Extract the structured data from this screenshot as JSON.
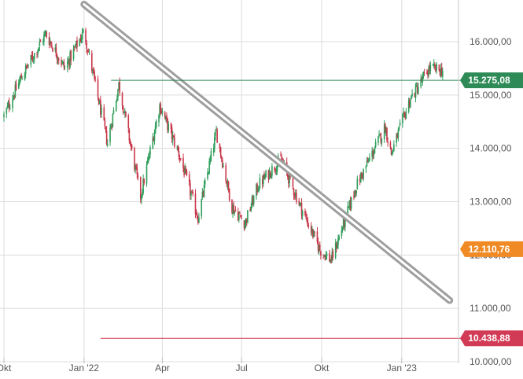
{
  "chart_data": {
    "type": "candlestick",
    "title": "",
    "xlabel": "",
    "ylabel": "",
    "ylim": [
      9900,
      16800
    ],
    "y_ticks": [
      "10.000,00",
      "11.000,00",
      "12.000,00",
      "13.000,00",
      "14.000,00",
      "15.000,00",
      "16.000,00"
    ],
    "y_tick_values": [
      10000,
      11000,
      12000,
      13000,
      14000,
      15000,
      16000
    ],
    "x_ticks": [
      "Okt",
      "Jan '22",
      "Apr",
      "Jul",
      "Okt",
      "Jan '23"
    ],
    "x_tick_dates": [
      "2021-10-01",
      "2022-01-01",
      "2022-04-01",
      "2022-07-01",
      "2022-10-01",
      "2023-01-01"
    ],
    "x_range": [
      "2021-10-01",
      "2023-02-28"
    ],
    "grid": true,
    "colors": {
      "up": "#2e9e5b",
      "down": "#c9374a",
      "grid": "#dcdcdc",
      "trendline": "#9e9e9e",
      "resistance": "#2e8b57",
      "support": "#d23b55",
      "current": "#f08a24"
    },
    "trendline": {
      "start": {
        "date": "2022-01-01",
        "value": 16700
      },
      "end": {
        "date": "2023-02-25",
        "value": 11150
      }
    },
    "levels": [
      {
        "label": "15.275,08",
        "value": 15275.08,
        "kind": "resistance",
        "start_date": "2022-02-01"
      },
      {
        "label": "10.438,88",
        "value": 10438.88,
        "kind": "support",
        "start_date": "2022-01-20"
      }
    ],
    "current": {
      "label": "12.110,76",
      "value": 12110.76
    },
    "ohlc_key_closes": [
      {
        "date": "2021-10-01",
        "close": 14600
      },
      {
        "date": "2021-10-20",
        "close": 15300
      },
      {
        "date": "2021-11-18",
        "close": 16150
      },
      {
        "date": "2021-12-10",
        "close": 15500
      },
      {
        "date": "2022-01-01",
        "close": 16200
      },
      {
        "date": "2022-01-28",
        "close": 14100
      },
      {
        "date": "2022-02-10",
        "close": 15200
      },
      {
        "date": "2022-03-07",
        "close": 13100
      },
      {
        "date": "2022-03-29",
        "close": 14800
      },
      {
        "date": "2022-04-20",
        "close": 13900
      },
      {
        "date": "2022-05-12",
        "close": 12700
      },
      {
        "date": "2022-06-02",
        "close": 14300
      },
      {
        "date": "2022-06-20",
        "close": 12900
      },
      {
        "date": "2022-07-05",
        "close": 12600
      },
      {
        "date": "2022-07-20",
        "close": 13300
      },
      {
        "date": "2022-08-15",
        "close": 13800
      },
      {
        "date": "2022-09-07",
        "close": 12900
      },
      {
        "date": "2022-09-29",
        "close": 12100
      },
      {
        "date": "2022-10-12",
        "close": 11900
      },
      {
        "date": "2022-11-10",
        "close": 13300
      },
      {
        "date": "2022-12-13",
        "close": 14400
      },
      {
        "date": "2022-12-20",
        "close": 13900
      },
      {
        "date": "2023-01-10",
        "close": 14900
      },
      {
        "date": "2023-02-02",
        "close": 15500
      },
      {
        "date": "2023-02-20",
        "close": 15450
      }
    ]
  }
}
